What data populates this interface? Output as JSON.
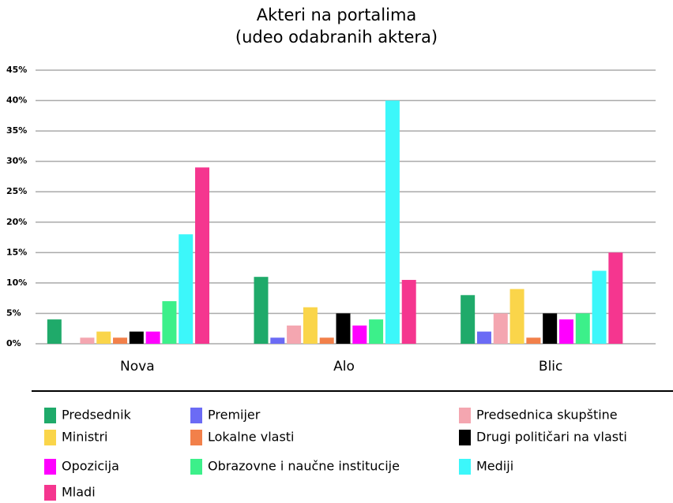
{
  "chart_data": {
    "type": "bar",
    "title": "Akteri na portalima",
    "subtitle": "(udeo odabranih aktera)",
    "categories": [
      "Nova",
      "Alo",
      "Blic"
    ],
    "series": [
      {
        "name": "Predsednik",
        "color": "#1faa6a",
        "values": [
          4,
          11,
          8
        ]
      },
      {
        "name": "Premijer",
        "color": "#6b6bf5",
        "values": [
          0,
          1,
          2
        ]
      },
      {
        "name": "Predsednica skupštine",
        "color": "#f4a6b0",
        "values": [
          1,
          3,
          5
        ]
      },
      {
        "name": "Ministri",
        "color": "#fad54a",
        "values": [
          2,
          6,
          9
        ]
      },
      {
        "name": "Lokalne vlasti",
        "color": "#f2804a",
        "values": [
          1,
          1,
          1
        ]
      },
      {
        "name": "Drugi političari na vlasti",
        "color": "#000000",
        "values": [
          2,
          5,
          5
        ]
      },
      {
        "name": "Opozicija",
        "color": "#ff00ff",
        "values": [
          2,
          3,
          4
        ]
      },
      {
        "name": "Obrazovne i naučne institucije",
        "color": "#3cf08a",
        "values": [
          7,
          4,
          5
        ]
      },
      {
        "name": "Mediji",
        "color": "#3cf7fa",
        "values": [
          18,
          40,
          12
        ]
      },
      {
        "name": "Mladi",
        "color": "#f5368f",
        "values": [
          29,
          10.5,
          15
        ]
      }
    ],
    "ylim": [
      0,
      45
    ],
    "yticks": [
      {
        "value": 0,
        "label": "0%"
      },
      {
        "value": 5,
        "label": "5%"
      },
      {
        "value": 10,
        "label": "10%"
      },
      {
        "value": 15,
        "label": "15%"
      },
      {
        "value": 20,
        "label": "20%"
      },
      {
        "value": 25,
        "label": "25%"
      },
      {
        "value": 30,
        "label": "30%"
      },
      {
        "value": 35,
        "label": "35%"
      },
      {
        "value": 40,
        "label": "40%"
      },
      {
        "value": 45,
        "label": "45%"
      }
    ],
    "grid": true
  }
}
